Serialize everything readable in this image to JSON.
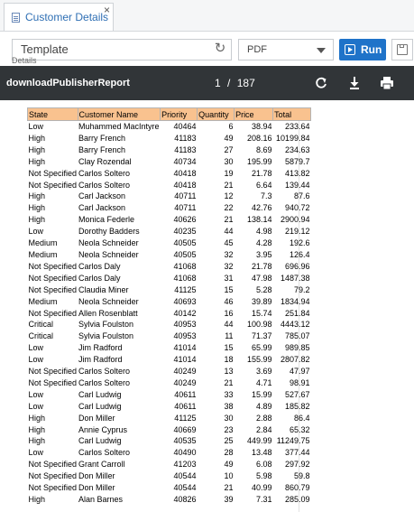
{
  "tab": {
    "title": "Customer Details",
    "close": "×"
  },
  "toolbar": {
    "template_value": "Template",
    "format_value": "PDF",
    "run_label": "Run",
    "details_label": "Details"
  },
  "viewer": {
    "report_name": "downloadPublisherReport",
    "page_current": "1",
    "page_sep": "/",
    "page_total": "187"
  },
  "table": {
    "headers": [
      "State",
      "Customer Name",
      "Priority",
      "Quantity",
      "Price",
      "Total"
    ],
    "rows": [
      [
        "Low",
        "Muhammed MacIntyre",
        "40464",
        "6",
        "38.94",
        "233.64"
      ],
      [
        "High",
        "Barry French",
        "41183",
        "49",
        "208.16",
        "10199.84"
      ],
      [
        "High",
        "Barry French",
        "41183",
        "27",
        "8.69",
        "234.63"
      ],
      [
        "High",
        "Clay Rozendal",
        "40734",
        "30",
        "195.99",
        "5879.7"
      ],
      [
        "Not Specified",
        "Carlos Soltero",
        "40418",
        "19",
        "21.78",
        "413.82"
      ],
      [
        "Not Specified",
        "Carlos Soltero",
        "40418",
        "21",
        "6.64",
        "139.44"
      ],
      [
        "High",
        "Carl Jackson",
        "40711",
        "12",
        "7.3",
        "87.6"
      ],
      [
        "High",
        "Carl Jackson",
        "40711",
        "22",
        "42.76",
        "940.72"
      ],
      [
        "High",
        "Monica Federle",
        "40626",
        "21",
        "138.14",
        "2900.94"
      ],
      [
        "Low",
        "Dorothy Badders",
        "40235",
        "44",
        "4.98",
        "219.12"
      ],
      [
        "Medium",
        "Neola Schneider",
        "40505",
        "45",
        "4.28",
        "192.6"
      ],
      [
        "Medium",
        "Neola Schneider",
        "40505",
        "32",
        "3.95",
        "126.4"
      ],
      [
        "Not Specified",
        "Carlos Daly",
        "41068",
        "32",
        "21.78",
        "696.96"
      ],
      [
        "Not Specified",
        "Carlos Daly",
        "41068",
        "31",
        "47.98",
        "1487.38"
      ],
      [
        "Not Specified",
        "Claudia Miner",
        "41125",
        "15",
        "5.28",
        "79.2"
      ],
      [
        "Medium",
        "Neola Schneider",
        "40693",
        "46",
        "39.89",
        "1834.94"
      ],
      [
        "Not Specified",
        "Allen Rosenblatt",
        "40142",
        "16",
        "15.74",
        "251.84"
      ],
      [
        "Critical",
        "Sylvia Foulston",
        "40953",
        "44",
        "100.98",
        "4443.12"
      ],
      [
        "Critical",
        "Sylvia Foulston",
        "40953",
        "11",
        "71.37",
        "785.07"
      ],
      [
        "Low",
        "Jim Radford",
        "41014",
        "15",
        "65.99",
        "989.85"
      ],
      [
        "Low",
        "Jim Radford",
        "41014",
        "18",
        "155.99",
        "2807.82"
      ],
      [
        "Not Specified",
        "Carlos Soltero",
        "40249",
        "13",
        "3.69",
        "47.97"
      ],
      [
        "Not Specified",
        "Carlos Soltero",
        "40249",
        "21",
        "4.71",
        "98.91"
      ],
      [
        "Low",
        "Carl Ludwig",
        "40611",
        "33",
        "15.99",
        "527.67"
      ],
      [
        "Low",
        "Carl Ludwig",
        "40611",
        "38",
        "4.89",
        "185.82"
      ],
      [
        "High",
        "Don Miller",
        "41125",
        "30",
        "2.88",
        "86.4"
      ],
      [
        "High",
        "Annie Cyprus",
        "40669",
        "23",
        "2.84",
        "65.32"
      ],
      [
        "High",
        "Carl Ludwig",
        "40535",
        "25",
        "449.99",
        "11249.75"
      ],
      [
        "Low",
        "Carlos Soltero",
        "40490",
        "28",
        "13.48",
        "377.44"
      ],
      [
        "Not Specified",
        "Grant Carroll",
        "41203",
        "49",
        "6.08",
        "297.92"
      ],
      [
        "Not Specified",
        "Don Miller",
        "40544",
        "10",
        "5.98",
        "59.8"
      ],
      [
        "Not Specified",
        "Don Miller",
        "40544",
        "21",
        "40.99",
        "860.79"
      ],
      [
        "High",
        "Alan Barnes",
        "40826",
        "39",
        "7.31",
        "285.09"
      ]
    ]
  },
  "icons": {
    "doc": "document-icon",
    "refresh": "refresh-icon",
    "run": "play-icon",
    "save": "save-icon",
    "rotate": "rotate-icon",
    "download": "download-icon",
    "print": "print-icon"
  }
}
